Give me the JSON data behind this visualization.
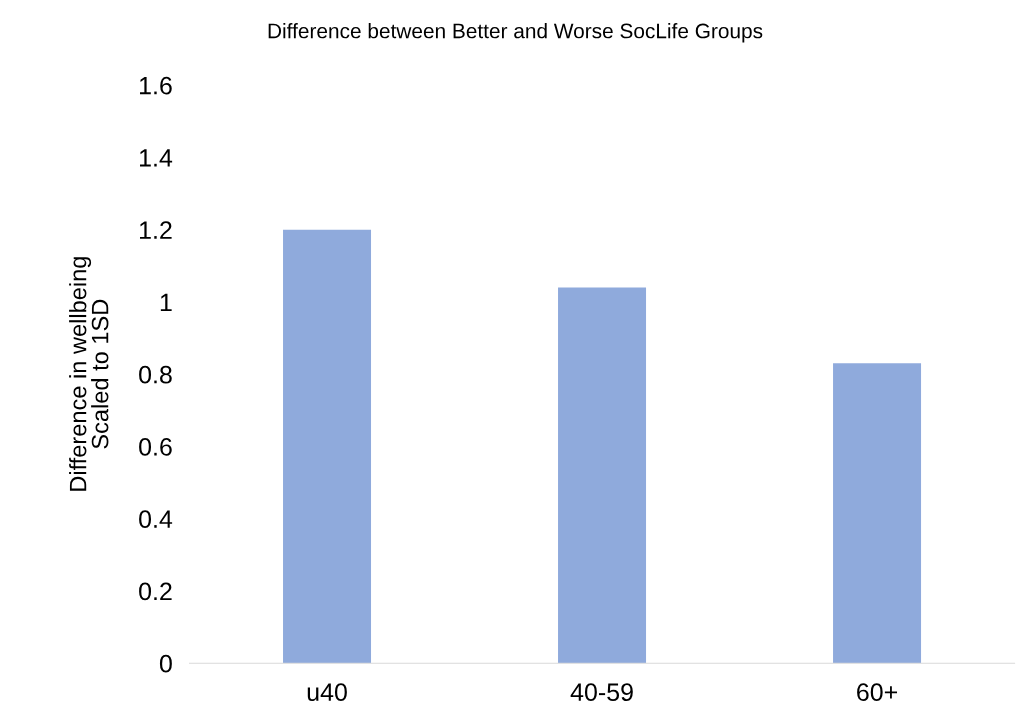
{
  "chart_data": {
    "type": "bar",
    "title": "Difference between Better and Worse SocLife Groups",
    "ylabel": "Difference in wellbeing\nScaled to 1SD",
    "categories": [
      "u40",
      "40-59",
      "60+"
    ],
    "values": [
      1.2,
      1.04,
      0.83
    ],
    "color": "#8faadc",
    "ylim": [
      0,
      1.6
    ],
    "yticks": [
      {
        "value": 0,
        "label": "0"
      },
      0.2,
      0.4,
      0.6,
      0.8,
      {
        "value": 1,
        "label": "1"
      },
      1.2,
      1.4,
      1.6
    ],
    "grid": false,
    "legend": false
  }
}
